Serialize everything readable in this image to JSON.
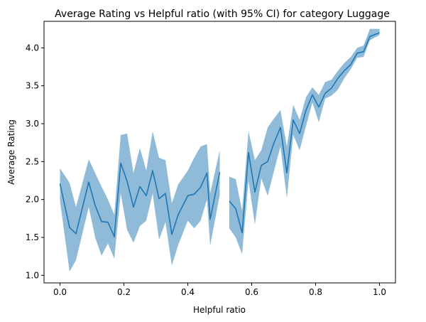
{
  "chart_data": {
    "type": "line",
    "title": "Average Rating vs Helpful ratio (with 95% CI) for category Luggage",
    "xlabel": "Helpful ratio",
    "ylabel": "Average Rating",
    "xlim": [
      -0.05,
      1.05
    ],
    "ylim": [
      0.9,
      4.35
    ],
    "xticks": [
      0.0,
      0.2,
      0.4,
      0.6,
      0.8,
      1.0
    ],
    "xtick_labels": [
      "0.0",
      "0.2",
      "0.4",
      "0.6",
      "0.8",
      "1.0"
    ],
    "yticks": [
      1.0,
      1.5,
      2.0,
      2.5,
      3.0,
      3.5,
      4.0
    ],
    "ytick_labels": [
      "1.0",
      "1.5",
      "2.0",
      "2.5",
      "3.0",
      "3.5",
      "4.0"
    ],
    "grid": false,
    "line_color": "#1f77b4",
    "band_color": "#1f77b4",
    "band_opacity": 0.5,
    "segments": [
      {
        "x": [
          0.0,
          0.03,
          0.05,
          0.09,
          0.11,
          0.13,
          0.15,
          0.17,
          0.19,
          0.21,
          0.23,
          0.25,
          0.27,
          0.29,
          0.31,
          0.33,
          0.35,
          0.37,
          0.4,
          0.42,
          0.44,
          0.46,
          0.47,
          0.5
        ],
        "y": [
          2.21,
          1.63,
          1.55,
          2.23,
          1.92,
          1.71,
          1.7,
          1.51,
          2.48,
          2.24,
          1.9,
          2.17,
          2.05,
          2.38,
          2.01,
          2.08,
          1.54,
          1.8,
          2.05,
          2.07,
          2.16,
          2.35,
          1.74,
          2.36
        ],
        "lower": [
          1.98,
          1.05,
          1.2,
          1.9,
          1.5,
          1.26,
          1.42,
          1.22,
          2.08,
          1.6,
          1.43,
          1.65,
          1.72,
          2.08,
          1.47,
          1.7,
          1.13,
          1.4,
          1.72,
          1.62,
          1.72,
          2.0,
          1.39,
          2.06
        ],
        "upper": [
          2.41,
          2.22,
          1.9,
          2.53,
          2.35,
          2.17,
          2.0,
          1.8,
          2.85,
          2.87,
          2.35,
          2.68,
          2.38,
          2.9,
          2.55,
          2.52,
          1.95,
          2.2,
          2.38,
          2.55,
          2.7,
          2.73,
          2.08,
          2.65
        ]
      },
      {
        "x": [
          0.53,
          0.55,
          0.57,
          0.59,
          0.61,
          0.63,
          0.65,
          0.67,
          0.69,
          0.71,
          0.73,
          0.75,
          0.77,
          0.79,
          0.81,
          0.83,
          0.85,
          0.87,
          0.89,
          0.91,
          0.93,
          0.95,
          0.97,
          1.0
        ],
        "y": [
          1.98,
          1.88,
          1.56,
          2.62,
          2.1,
          2.45,
          2.5,
          2.75,
          2.95,
          2.35,
          3.05,
          2.87,
          3.18,
          3.38,
          3.22,
          3.4,
          3.47,
          3.6,
          3.7,
          3.78,
          3.93,
          3.95,
          4.15,
          4.2
        ],
        "lower": [
          1.62,
          1.5,
          1.28,
          2.25,
          1.67,
          2.28,
          2.05,
          2.38,
          2.7,
          2.02,
          2.85,
          2.65,
          2.97,
          3.28,
          3.02,
          3.33,
          3.37,
          3.45,
          3.6,
          3.72,
          3.87,
          3.88,
          4.1,
          4.17
        ],
        "upper": [
          2.3,
          2.27,
          1.85,
          2.9,
          2.52,
          2.65,
          2.95,
          3.07,
          3.18,
          2.7,
          3.25,
          3.05,
          3.35,
          3.48,
          3.38,
          3.55,
          3.58,
          3.7,
          3.8,
          3.88,
          4.0,
          4.03,
          4.25,
          4.25
        ]
      }
    ]
  }
}
